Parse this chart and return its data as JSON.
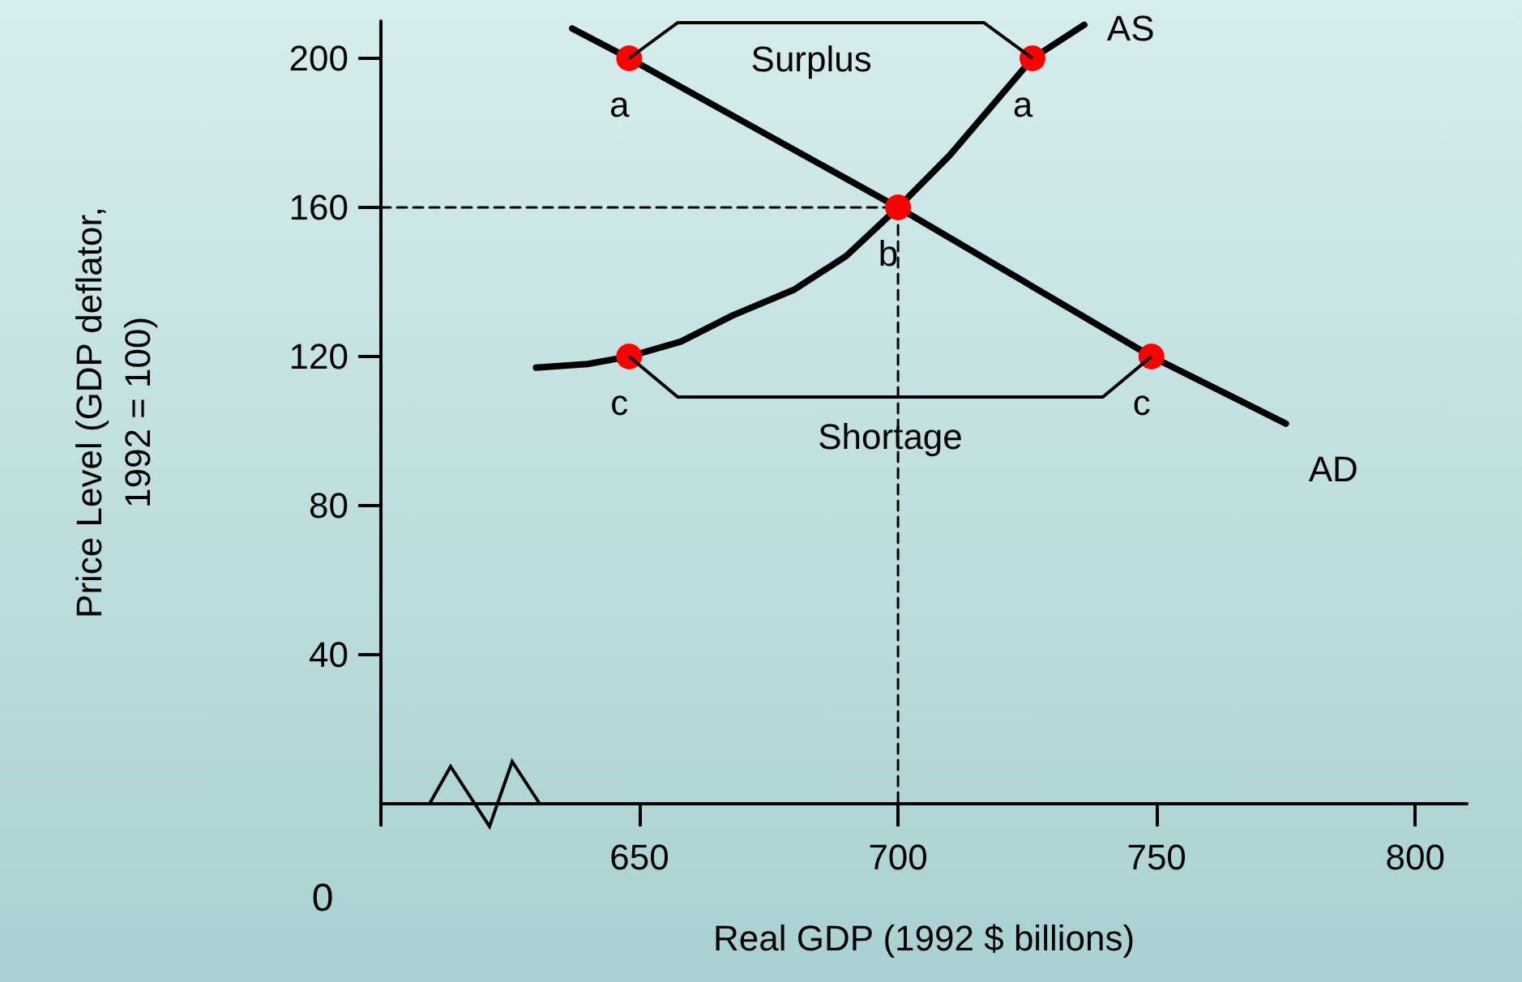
{
  "chart_data": {
    "type": "line",
    "xlabel": "Real GDP (1992 $ billions)",
    "ylabel": "Price Level (GDP deflator, 1992 = 100)",
    "xlim": [
      600,
      810
    ],
    "xticks": [
      {
        "value": 600,
        "label": null
      },
      650,
      700,
      750,
      800
    ],
    "ylim": [
      0,
      210
    ],
    "yticks": [
      40,
      80,
      120,
      160,
      200
    ],
    "grid": false,
    "legend": false,
    "series": [
      {
        "name": "AD",
        "color": "#000000",
        "x": [
          637,
          648,
          700,
          749,
          775
        ],
        "values": [
          208,
          200,
          160,
          120,
          102
        ]
      },
      {
        "name": "AS",
        "color": "#000000",
        "x": [
          630,
          640,
          648,
          658,
          668,
          680,
          690,
          700,
          710,
          718,
          726,
          736
        ],
        "values": [
          117,
          118,
          120,
          124,
          131,
          138,
          147,
          160,
          174,
          187,
          200,
          209
        ]
      },
      {
        "type": "line",
        "color": "#000000",
        "line_style": "dashed",
        "x": [
          600,
          700,
          700
        ],
        "values": [
          160,
          160,
          0
        ]
      },
      {
        "type": "scatter",
        "color": "#ff0000",
        "marker": "circle",
        "x": [
          648,
          726,
          700,
          648,
          749
        ],
        "values": [
          200,
          200,
          160,
          120,
          120
        ]
      }
    ],
    "annotations": [
      "Surplus",
      "Shortage",
      "0",
      {
        "text": "a",
        "x": 648,
        "y": 200
      },
      {
        "text": "a",
        "x": 726,
        "y": 200
      },
      {
        "text": "b",
        "x": 700,
        "y": 160
      },
      {
        "text": "c",
        "x": 648,
        "y": 120
      },
      {
        "text": "c",
        "x": 749,
        "y": 120
      }
    ]
  }
}
